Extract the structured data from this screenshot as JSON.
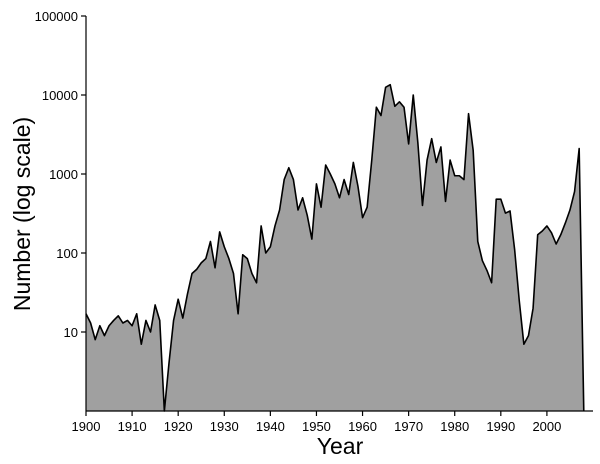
{
  "chart_data": {
    "type": "area",
    "x_label": "Year",
    "y_label": "Number (log scale)",
    "log_y": true,
    "color": "#a0a0a0",
    "line_color": "#000000",
    "x": [
      1900,
      1901,
      1902,
      1903,
      1904,
      1905,
      1906,
      1907,
      1908,
      1909,
      1910,
      1911,
      1912,
      1913,
      1914,
      1915,
      1916,
      1917,
      1918,
      1919,
      1920,
      1921,
      1922,
      1923,
      1924,
      1925,
      1926,
      1927,
      1928,
      1929,
      1930,
      1931,
      1932,
      1933,
      1934,
      1935,
      1936,
      1937,
      1938,
      1939,
      1940,
      1941,
      1942,
      1943,
      1944,
      1945,
      1946,
      1947,
      1948,
      1949,
      1950,
      1951,
      1952,
      1953,
      1954,
      1955,
      1956,
      1957,
      1958,
      1959,
      1960,
      1961,
      1962,
      1963,
      1964,
      1965,
      1966,
      1967,
      1968,
      1969,
      1970,
      1971,
      1972,
      1973,
      1974,
      1975,
      1976,
      1977,
      1978,
      1979,
      1980,
      1981,
      1982,
      1983,
      1984,
      1985,
      1986,
      1987,
      1988,
      1989,
      1990,
      1991,
      1992,
      1993,
      1994,
      1995,
      1996,
      1997,
      1998,
      1999,
      2000,
      2001,
      2002,
      2003,
      2004,
      2005,
      2006,
      2007,
      2008
    ],
    "values": [
      17,
      13,
      8,
      12,
      9,
      12,
      14,
      16,
      13,
      14,
      12,
      17,
      7,
      14,
      10,
      22,
      14,
      1,
      4,
      14,
      26,
      15,
      30,
      55,
      62,
      75,
      85,
      140,
      65,
      185,
      120,
      85,
      55,
      17,
      95,
      85,
      55,
      42,
      220,
      100,
      120,
      220,
      350,
      850,
      1200,
      850,
      350,
      500,
      300,
      150,
      750,
      380,
      1300,
      1000,
      750,
      500,
      850,
      550,
      1400,
      700,
      280,
      380,
      1500,
      7000,
      5500,
      12500,
      13500,
      7200,
      8200,
      7000,
      2400,
      10000,
      2500,
      400,
      1500,
      2800,
      1400,
      2200,
      450,
      1500,
      950,
      950,
      850,
      5800,
      2000,
      140,
      80,
      60,
      42,
      480,
      480,
      320,
      340,
      110,
      25,
      7,
      9,
      20,
      170,
      190,
      220,
      180,
      130,
      170,
      240,
      350,
      600,
      2100,
      1
    ],
    "xlim": [
      1900,
      2010
    ],
    "ylim": [
      1,
      100000
    ],
    "xticks": [
      1900,
      1910,
      1920,
      1930,
      1940,
      1950,
      1960,
      1970,
      1980,
      1990,
      2000
    ],
    "yticks": [
      10,
      100,
      1000,
      10000,
      100000
    ]
  }
}
